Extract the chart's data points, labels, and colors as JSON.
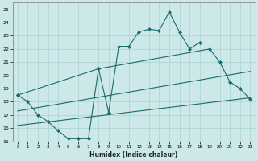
{
  "title": "",
  "xlabel": "Humidex (Indice chaleur)",
  "xlim": [
    -0.5,
    23.5
  ],
  "ylim": [
    15,
    25.5
  ],
  "xticks": [
    0,
    1,
    2,
    3,
    4,
    5,
    6,
    7,
    8,
    9,
    10,
    11,
    12,
    13,
    14,
    15,
    16,
    17,
    18,
    19,
    20,
    21,
    22,
    23
  ],
  "yticks": [
    15,
    16,
    17,
    18,
    19,
    20,
    21,
    22,
    23,
    24,
    25
  ],
  "bg_color": "#cce8e8",
  "line_color": "#1a6b6b",
  "grid_color": "#aad0d0",
  "series": [
    {
      "x": [
        0,
        1,
        2,
        3,
        4,
        5,
        6,
        7,
        8,
        9,
        10,
        11,
        12,
        13,
        14,
        15,
        16,
        17,
        18
      ],
      "y": [
        18.5,
        18.0,
        17.0,
        16.5,
        15.8,
        15.2,
        15.2,
        15.2,
        20.5,
        17.2,
        22.2,
        22.2,
        23.3,
        23.5,
        23.4,
        24.8,
        23.3,
        22.0,
        22.5
      ]
    },
    {
      "x": [
        0,
        8,
        19,
        20,
        21,
        22,
        23
      ],
      "y": [
        18.5,
        20.5,
        22.0,
        21.0,
        19.5,
        19.0,
        18.2
      ]
    },
    {
      "x": [
        0,
        23
      ],
      "y": [
        16.2,
        18.3
      ]
    },
    {
      "x": [
        0,
        23
      ],
      "y": [
        17.3,
        20.3
      ]
    }
  ]
}
